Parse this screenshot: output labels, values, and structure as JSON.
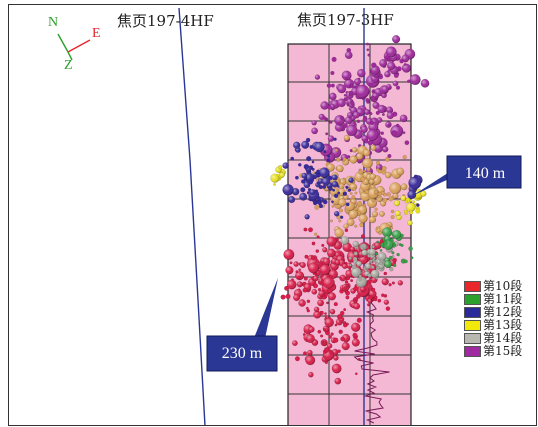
{
  "wells": {
    "left_label": "焦页197-4HF",
    "right_label": "焦页197-3HF"
  },
  "compass": {
    "north": "N",
    "east": "E",
    "down": "Z"
  },
  "callouts": [
    {
      "text": "140 m"
    },
    {
      "text": "230 m"
    }
  ],
  "legend": [
    {
      "label": "第10段",
      "color": "#e8262c"
    },
    {
      "label": "第11段",
      "color": "#2ca02c"
    },
    {
      "label": "第12段",
      "color": "#2a2a9a"
    },
    {
      "label": "第13段",
      "color": "#f2e90a"
    },
    {
      "label": "第14段",
      "color": "#b8b8b0"
    },
    {
      "label": "第15段",
      "color": "#a02aa0"
    }
  ],
  "colors": {
    "grid_fill": "#f4b8d4",
    "callout_fill": "#2b3794",
    "well_line": "#2b3794",
    "seg10": "#d81e4a",
    "seg11": "#3aa04a",
    "seg12": "#3a2c9c",
    "seg13": "#e8e020",
    "seg14": "#a8a8a0",
    "seg15": "#a02a9c",
    "tan": "#d9a05a"
  }
}
